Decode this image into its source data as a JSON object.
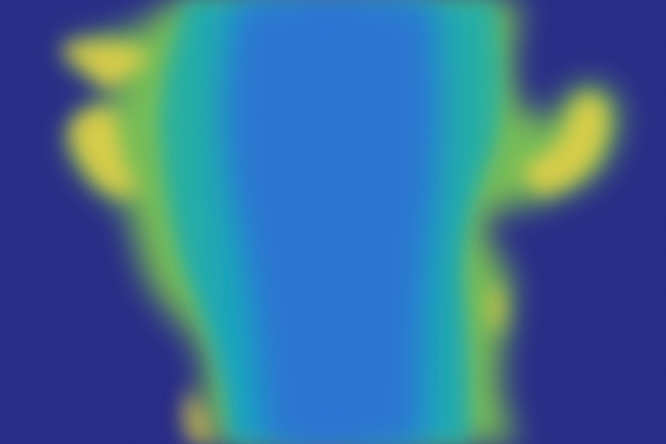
{
  "image": {
    "kind": "false-color intensity field",
    "colormap": "viridis-like",
    "colors": {
      "background": "#2b2f8c",
      "cold": "#2f4fb8",
      "mid_blue": "#2e78d9",
      "cyan": "#1aa7c7",
      "teal": "#2fb89b",
      "green": "#7cc35a",
      "yellow": "#e9d64b",
      "hot": "#f4d43a"
    }
  }
}
